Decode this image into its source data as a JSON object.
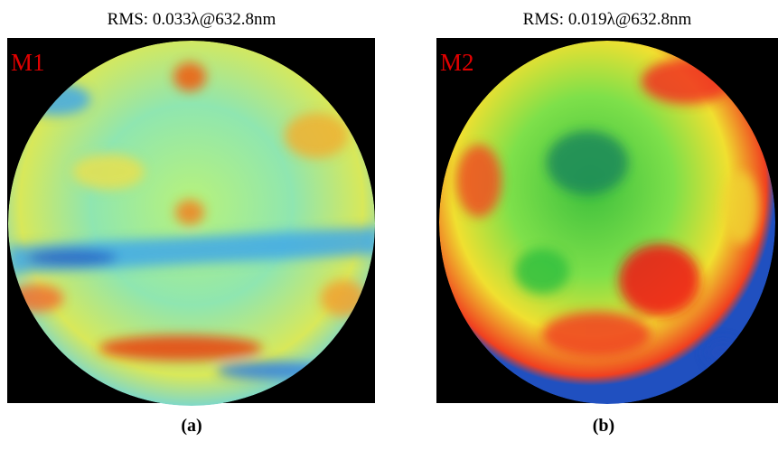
{
  "panels": [
    {
      "title": "RMS: 0.033λ@632.8nm",
      "label": "M1",
      "caption": "(a)"
    },
    {
      "title": "RMS: 0.019λ@632.8nm",
      "label": "M2",
      "caption": "(b)"
    }
  ]
}
